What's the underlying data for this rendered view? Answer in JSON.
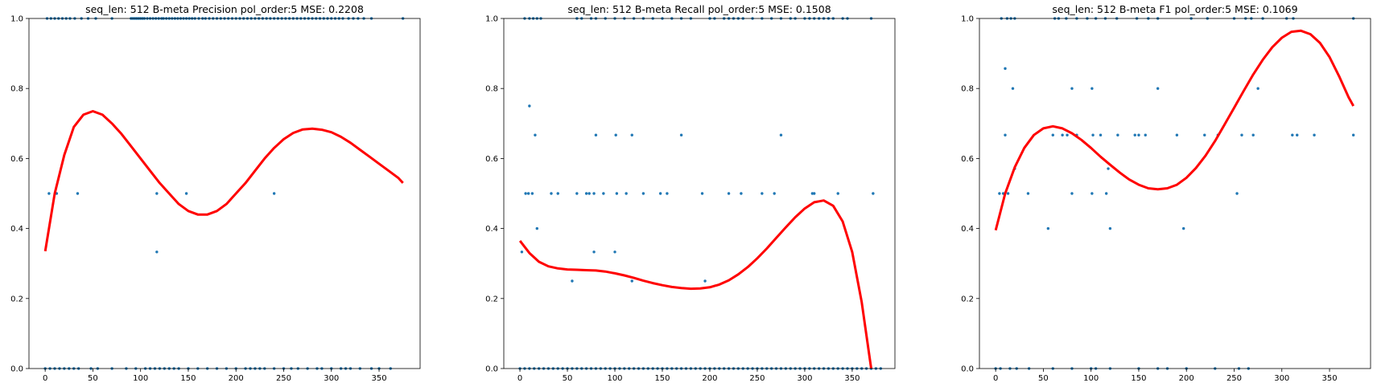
{
  "chart_data": [
    {
      "type": "scatter",
      "title": "seq_len: 512    B-meta   Precision   pol_order:5   MSE: 0.2208",
      "xlabel": "",
      "ylabel": "",
      "xlim": [
        -17,
        393
      ],
      "ylim": [
        0,
        1
      ],
      "xticks": [
        0,
        50,
        100,
        150,
        200,
        250,
        300,
        350
      ],
      "yticks": [
        0.0,
        0.2,
        0.4,
        0.6,
        0.8,
        1.0
      ],
      "xtick_labels": [
        "0",
        "50",
        "100",
        "150",
        "200",
        "250",
        "300",
        "350"
      ],
      "ytick_labels": [
        "0.0",
        "0.2",
        "0.4",
        "0.6",
        "0.8",
        "1.0"
      ],
      "grid": false,
      "points": {
        "x": [
          2,
          6,
          10,
          14,
          18,
          22,
          26,
          31,
          38,
          45,
          53,
          70,
          90,
          92,
          94,
          96,
          98,
          100,
          102,
          104,
          107,
          110,
          113,
          116,
          119,
          122,
          124,
          127,
          130,
          133,
          136,
          139,
          142,
          145,
          148,
          151,
          154,
          157,
          161,
          165,
          168,
          172,
          176,
          180,
          184,
          188,
          192,
          196,
          200,
          204,
          208,
          212,
          216,
          220,
          224,
          228,
          232,
          236,
          240,
          244,
          248,
          252,
          256,
          260,
          264,
          268,
          272,
          276,
          280,
          284,
          288,
          292,
          296,
          300,
          304,
          308,
          312,
          318,
          323,
          328,
          334,
          342,
          375,
          0,
          5,
          10,
          15,
          20,
          25,
          30,
          35,
          48,
          55,
          70,
          85,
          95,
          105,
          110,
          115,
          120,
          125,
          130,
          135,
          140,
          150,
          160,
          170,
          180,
          190,
          200,
          210,
          215,
          220,
          225,
          230,
          240,
          250,
          258,
          265,
          275,
          285,
          290,
          300,
          310,
          315,
          320,
          330,
          342,
          350,
          362,
          4,
          12,
          34,
          117,
          148,
          240,
          117
        ],
        "y": [
          1,
          1,
          1,
          1,
          1,
          1,
          1,
          1,
          1,
          1,
          1,
          1,
          1,
          1,
          1,
          1,
          1,
          1,
          1,
          1,
          1,
          1,
          1,
          1,
          1,
          1,
          1,
          1,
          1,
          1,
          1,
          1,
          1,
          1,
          1,
          1,
          1,
          1,
          1,
          1,
          1,
          1,
          1,
          1,
          1,
          1,
          1,
          1,
          1,
          1,
          1,
          1,
          1,
          1,
          1,
          1,
          1,
          1,
          1,
          1,
          1,
          1,
          1,
          1,
          1,
          1,
          1,
          1,
          1,
          1,
          1,
          1,
          1,
          1,
          1,
          1,
          1,
          1,
          1,
          1,
          1,
          1,
          1,
          0,
          0,
          0,
          0,
          0,
          0,
          0,
          0,
          0,
          0,
          0,
          0,
          0,
          0,
          0,
          0,
          0,
          0,
          0,
          0,
          0,
          0,
          0,
          0,
          0,
          0,
          0,
          0,
          0,
          0,
          0,
          0,
          0,
          0,
          0,
          0,
          0,
          0,
          0,
          0,
          0,
          0,
          0,
          0,
          0,
          0,
          0,
          0.5,
          0.5,
          0.5,
          0.5,
          0.5,
          0.5,
          0.333
        ]
      },
      "fit": {
        "x": [
          0,
          10,
          20,
          30,
          40,
          50,
          60,
          70,
          80,
          90,
          100,
          110,
          120,
          130,
          140,
          150,
          160,
          170,
          180,
          190,
          200,
          210,
          220,
          230,
          240,
          250,
          260,
          270,
          280,
          290,
          300,
          310,
          320,
          330,
          340,
          350,
          360,
          370,
          375
        ],
        "y": [
          0.335,
          0.5,
          0.61,
          0.69,
          0.725,
          0.735,
          0.725,
          0.7,
          0.67,
          0.635,
          0.6,
          0.565,
          0.53,
          0.5,
          0.47,
          0.45,
          0.44,
          0.44,
          0.45,
          0.47,
          0.5,
          0.53,
          0.565,
          0.6,
          0.63,
          0.655,
          0.673,
          0.683,
          0.685,
          0.682,
          0.675,
          0.662,
          0.645,
          0.625,
          0.605,
          0.585,
          0.565,
          0.545,
          0.53
        ]
      }
    },
    {
      "type": "scatter",
      "title": "seq_len: 512    B-meta   Recall   pol_order:5   MSE: 0.1508",
      "xlabel": "",
      "ylabel": "",
      "xlim": [
        -17,
        395
      ],
      "ylim": [
        0,
        1
      ],
      "xticks": [
        0,
        50,
        100,
        150,
        200,
        250,
        300,
        350
      ],
      "yticks": [
        0.0,
        0.2,
        0.4,
        0.6,
        0.8,
        1.0
      ],
      "xtick_labels": [
        "0",
        "50",
        "100",
        "150",
        "200",
        "250",
        "300",
        "350"
      ],
      "ytick_labels": [
        "0.0",
        "0.2",
        "0.4",
        "0.6",
        "0.8",
        "1.0"
      ],
      "grid": false,
      "points": {
        "x": [
          5,
          10,
          14,
          18,
          22,
          60,
          65,
          75,
          80,
          90,
          100,
          110,
          120,
          130,
          140,
          150,
          160,
          170,
          180,
          200,
          205,
          215,
          220,
          225,
          230,
          235,
          245,
          255,
          265,
          275,
          285,
          290,
          300,
          305,
          310,
          315,
          320,
          325,
          330,
          340,
          345,
          370,
          0,
          5,
          10,
          15,
          20,
          25,
          30,
          35,
          40,
          45,
          50,
          55,
          60,
          65,
          70,
          75,
          80,
          85,
          90,
          95,
          100,
          105,
          110,
          115,
          120,
          125,
          130,
          135,
          140,
          145,
          150,
          155,
          160,
          165,
          170,
          175,
          180,
          185,
          190,
          195,
          200,
          205,
          210,
          215,
          220,
          225,
          230,
          235,
          240,
          245,
          250,
          255,
          260,
          265,
          270,
          275,
          280,
          285,
          290,
          295,
          300,
          305,
          310,
          315,
          320,
          325,
          330,
          335,
          340,
          345,
          350,
          355,
          360,
          365,
          370,
          375,
          380,
          6,
          9,
          13,
          33,
          40,
          60,
          70,
          73,
          78,
          88,
          102,
          112,
          130,
          148,
          155,
          192,
          220,
          233,
          255,
          268,
          308,
          310,
          335,
          372,
          10,
          16,
          80,
          101,
          118,
          170,
          275,
          18,
          2,
          78,
          100,
          55,
          118,
          195
        ],
        "y": [
          1,
          1,
          1,
          1,
          1,
          1,
          1,
          1,
          1,
          1,
          1,
          1,
          1,
          1,
          1,
          1,
          1,
          1,
          1,
          1,
          1,
          1,
          1,
          1,
          1,
          1,
          1,
          1,
          1,
          1,
          1,
          1,
          1,
          1,
          1,
          1,
          1,
          1,
          1,
          1,
          1,
          1,
          0,
          0,
          0,
          0,
          0,
          0,
          0,
          0,
          0,
          0,
          0,
          0,
          0,
          0,
          0,
          0,
          0,
          0,
          0,
          0,
          0,
          0,
          0,
          0,
          0,
          0,
          0,
          0,
          0,
          0,
          0,
          0,
          0,
          0,
          0,
          0,
          0,
          0,
          0,
          0,
          0,
          0,
          0,
          0,
          0,
          0,
          0,
          0,
          0,
          0,
          0,
          0,
          0,
          0,
          0,
          0,
          0,
          0,
          0,
          0,
          0,
          0,
          0,
          0,
          0,
          0,
          0,
          0,
          0,
          0,
          0,
          0,
          0,
          0,
          0,
          0,
          0,
          0.5,
          0.5,
          0.5,
          0.5,
          0.5,
          0.5,
          0.5,
          0.5,
          0.5,
          0.5,
          0.5,
          0.5,
          0.5,
          0.5,
          0.5,
          0.5,
          0.5,
          0.5,
          0.5,
          0.5,
          0.5,
          0.5,
          0.5,
          0.5,
          0.75,
          0.667,
          0.667,
          0.667,
          0.667,
          0.667,
          0.667,
          0.4,
          0.333,
          0.333,
          0.333,
          0.25,
          0.25,
          0.25
        ]
      },
      "fit": {
        "x": [
          0,
          10,
          20,
          30,
          40,
          50,
          60,
          70,
          80,
          90,
          100,
          110,
          120,
          130,
          140,
          150,
          160,
          170,
          180,
          190,
          200,
          210,
          220,
          230,
          240,
          250,
          260,
          270,
          280,
          290,
          300,
          310,
          320,
          330,
          340,
          350,
          360,
          370
        ],
        "y": [
          0.365,
          0.33,
          0.305,
          0.292,
          0.286,
          0.283,
          0.282,
          0.281,
          0.28,
          0.277,
          0.272,
          0.266,
          0.259,
          0.251,
          0.244,
          0.238,
          0.233,
          0.23,
          0.228,
          0.229,
          0.232,
          0.24,
          0.252,
          0.269,
          0.29,
          0.315,
          0.343,
          0.373,
          0.403,
          0.432,
          0.457,
          0.475,
          0.48,
          0.465,
          0.42,
          0.333,
          0.19,
          0.0
        ]
      }
    },
    {
      "type": "scatter",
      "title": "seq_len: 512    B-meta   F1   pol_order:5   MSE: 0.1069",
      "xlabel": "",
      "ylabel": "",
      "xlim": [
        -17,
        393
      ],
      "ylim": [
        0,
        1
      ],
      "xticks": [
        0,
        50,
        100,
        150,
        200,
        250,
        300,
        350
      ],
      "yticks": [
        0.0,
        0.2,
        0.4,
        0.6,
        0.8,
        1.0
      ],
      "xtick_labels": [
        "0",
        "50",
        "100",
        "150",
        "200",
        "250",
        "300",
        "350"
      ],
      "ytick_labels": [
        "0.0",
        "0.2",
        "0.4",
        "0.6",
        "0.8",
        "1.0"
      ],
      "grid": false,
      "points": {
        "x": [
          6,
          12,
          16,
          20,
          62,
          66,
          74,
          85,
          96,
          105,
          115,
          127,
          148,
          160,
          170,
          205,
          222,
          250,
          262,
          268,
          280,
          305,
          312,
          375,
          0,
          5,
          15,
          22,
          35,
          60,
          80,
          100,
          105,
          120,
          150,
          170,
          180,
          200,
          230,
          255,
          265,
          10,
          60,
          70,
          75,
          85,
          102,
          110,
          128,
          146,
          150,
          157,
          190,
          219,
          233,
          258,
          270,
          311,
          316,
          334,
          375,
          4,
          8,
          13,
          34,
          80,
          101,
          116,
          253,
          18,
          80,
          101,
          170,
          275,
          10,
          20,
          118,
          55,
          120,
          197
        ],
        "y": [
          1,
          1,
          1,
          1,
          1,
          1,
          1,
          1,
          1,
          1,
          1,
          1,
          1,
          1,
          1,
          1,
          1,
          1,
          1,
          1,
          1,
          1,
          1,
          1,
          0,
          0,
          0,
          0,
          0,
          0,
          0,
          0,
          0,
          0,
          0,
          0,
          0,
          0,
          0,
          0,
          0,
          0.667,
          0.667,
          0.667,
          0.667,
          0.667,
          0.667,
          0.667,
          0.667,
          0.667,
          0.667,
          0.667,
          0.667,
          0.667,
          0.667,
          0.667,
          0.667,
          0.667,
          0.667,
          0.667,
          0.667,
          0.5,
          0.5,
          0.5,
          0.5,
          0.5,
          0.5,
          0.5,
          0.5,
          0.8,
          0.8,
          0.8,
          0.8,
          0.8,
          0.857,
          0.571,
          0.571,
          0.4,
          0.4,
          0.4
        ]
      },
      "fit": {
        "x": [
          0,
          10,
          20,
          30,
          40,
          50,
          60,
          70,
          80,
          90,
          100,
          110,
          120,
          130,
          140,
          150,
          160,
          170,
          180,
          190,
          200,
          210,
          220,
          230,
          240,
          250,
          260,
          270,
          280,
          290,
          300,
          310,
          320,
          330,
          340,
          350,
          360,
          370,
          375
        ],
        "y": [
          0.395,
          0.5,
          0.575,
          0.63,
          0.667,
          0.686,
          0.692,
          0.686,
          0.672,
          0.653,
          0.63,
          0.605,
          0.582,
          0.56,
          0.54,
          0.525,
          0.515,
          0.512,
          0.515,
          0.525,
          0.545,
          0.573,
          0.608,
          0.65,
          0.697,
          0.745,
          0.793,
          0.84,
          0.882,
          0.918,
          0.945,
          0.962,
          0.965,
          0.955,
          0.93,
          0.89,
          0.835,
          0.775,
          0.75
        ]
      }
    }
  ]
}
